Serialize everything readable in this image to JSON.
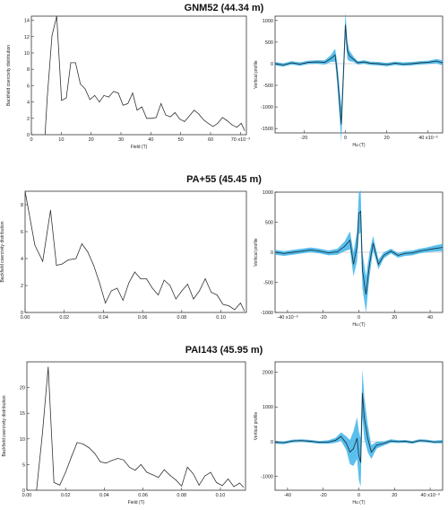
{
  "panels": [
    {
      "title": "GNM52 (44.34 m)"
    },
    {
      "title": "PA+55 (45.45 m)"
    },
    {
      "title": "PAI143 (45.95 m)"
    }
  ],
  "chart_data": [
    {
      "type": "line",
      "xlabel": "Field (T)",
      "ylabel": "Backfield coercivity distribution",
      "xlim": [
        0,
        0.072
      ],
      "ylim": [
        0,
        14.5
      ],
      "xticks": [
        0,
        0.01,
        0.02,
        0.03,
        0.04,
        0.05,
        0.06,
        0.07
      ],
      "xticklabels": [
        "0",
        "10",
        "20",
        "30",
        "40",
        "50",
        "60",
        "70 x10⁻³"
      ],
      "yticks": [
        0,
        2,
        4,
        6,
        8,
        10,
        12,
        14
      ],
      "yticklabels": [
        "0",
        "2",
        "4",
        "6",
        "8",
        "10",
        "12",
        "14"
      ],
      "x": [
        0.0046,
        0.0053,
        0.0069,
        0.0085,
        0.0101,
        0.0117,
        0.0132,
        0.0148,
        0.0164,
        0.018,
        0.0196,
        0.0212,
        0.0228,
        0.0243,
        0.0259,
        0.0275,
        0.0291,
        0.0307,
        0.0323,
        0.0339,
        0.0354,
        0.037,
        0.0386,
        0.0402,
        0.0418,
        0.0434,
        0.045,
        0.0466,
        0.0481,
        0.0497,
        0.0513,
        0.0529,
        0.0545,
        0.0561,
        0.0577,
        0.0592,
        0.0608,
        0.0624,
        0.064,
        0.0656,
        0.0672,
        0.0688,
        0.0703,
        0.0714
      ],
      "y": [
        0,
        4.5,
        12.1,
        14.5,
        4.2,
        4.5,
        8.8,
        8.8,
        6.2,
        5.6,
        4.3,
        4.8,
        4.0,
        4.8,
        4.6,
        5.3,
        5.1,
        3.6,
        3.8,
        5.1,
        3.0,
        3.4,
        2.0,
        2.0,
        2.1,
        3.8,
        2.4,
        2.2,
        2.7,
        1.9,
        1.6,
        2.3,
        3.0,
        2.5,
        1.8,
        1.4,
        1.0,
        1.4,
        2.1,
        1.7,
        1.2,
        0.9,
        1.4,
        0.5
      ]
    },
    {
      "type": "line",
      "xlabel": "Hu (T)",
      "ylabel": "Vertical profile",
      "xlim": [
        -0.034,
        0.047
      ],
      "ylim": [
        -1600,
        1100
      ],
      "xticks": [
        -0.02,
        0,
        0.02,
        0.04
      ],
      "xticklabels": [
        "-20",
        "0",
        "20",
        "40 x10⁻³"
      ],
      "yticks": [
        -1500,
        -1000,
        -500,
        0,
        500,
        1000
      ],
      "yticklabels": [
        "-1500",
        "-1000",
        "-500",
        "0",
        "500",
        "1000"
      ],
      "x": [
        -0.034,
        -0.03,
        -0.026,
        -0.022,
        -0.018,
        -0.014,
        -0.01,
        -0.007,
        -0.005,
        -0.004,
        -0.002,
        -0.001,
        0.0,
        0.001,
        0.002,
        0.004,
        0.006,
        0.009,
        0.012,
        0.016,
        0.02,
        0.024,
        0.028,
        0.032,
        0.036,
        0.04,
        0.044,
        0.047
      ],
      "y": [
        0,
        -30,
        20,
        -10,
        30,
        40,
        30,
        120,
        200,
        -200,
        -1400,
        -300,
        900,
        300,
        180,
        100,
        20,
        40,
        10,
        0,
        -20,
        10,
        -10,
        0,
        20,
        30,
        60,
        20
      ],
      "band_halfwidth": [
        40,
        40,
        40,
        40,
        40,
        40,
        50,
        80,
        150,
        250,
        400,
        300,
        300,
        200,
        120,
        60,
        40,
        40,
        40,
        40,
        40,
        40,
        40,
        40,
        40,
        40,
        50,
        60
      ]
    },
    {
      "type": "line",
      "xlabel": "",
      "ylabel": "Backfield coercivity distribution",
      "xlim": [
        0,
        0.113
      ],
      "ylim": [
        0,
        9
      ],
      "xticks": [
        0,
        0.02,
        0.04,
        0.06,
        0.08,
        0.1
      ],
      "xticklabels": [
        "0.00",
        "0.02",
        "0.04",
        "0.06",
        "0.08",
        "0.10"
      ],
      "yticks": [
        0,
        2,
        4,
        6,
        8
      ],
      "yticklabels": [
        "0",
        "2",
        "4",
        "6",
        "8"
      ],
      "x": [
        0.0,
        0.005,
        0.009,
        0.013,
        0.016,
        0.019,
        0.022,
        0.026,
        0.029,
        0.032,
        0.035,
        0.038,
        0.041,
        0.044,
        0.047,
        0.05,
        0.053,
        0.056,
        0.059,
        0.062,
        0.065,
        0.068,
        0.071,
        0.074,
        0.077,
        0.08,
        0.083,
        0.086,
        0.089,
        0.092,
        0.095,
        0.098,
        0.101,
        0.104,
        0.107,
        0.11,
        0.112
      ],
      "y": [
        9,
        5.0,
        3.8,
        7.6,
        3.5,
        3.6,
        3.9,
        4.0,
        5.1,
        4.5,
        3.5,
        2.2,
        0.7,
        1.6,
        1.8,
        0.9,
        2.2,
        3.0,
        2.5,
        2.5,
        1.8,
        1.3,
        2.4,
        2.0,
        1.0,
        1.6,
        2.1,
        1.0,
        1.6,
        2.5,
        1.5,
        1.3,
        0.6,
        0.5,
        0.2,
        0.7,
        0.1
      ]
    },
    {
      "type": "line",
      "xlabel": "Hu (T)",
      "ylabel": "Vertical profile",
      "xlim": [
        -0.047,
        0.047
      ],
      "ylim": [
        -1000,
        1000
      ],
      "xticks": [
        -0.04,
        -0.02,
        0,
        0.02,
        0.04
      ],
      "xticklabels": [
        "-40 x10⁻³",
        "-20",
        "0",
        "20",
        "40"
      ],
      "yticks": [
        -1000,
        -500,
        0,
        500,
        1000
      ],
      "yticklabels": [
        "-1000",
        "-500",
        "0",
        "500",
        "1000"
      ],
      "x": [
        -0.047,
        -0.042,
        -0.037,
        -0.032,
        -0.027,
        -0.022,
        -0.017,
        -0.012,
        -0.008,
        -0.005,
        -0.003,
        -0.001,
        0.0,
        0.001,
        0.002,
        0.004,
        0.006,
        0.008,
        0.011,
        0.014,
        0.018,
        0.022,
        0.026,
        0.03,
        0.034,
        0.038,
        0.042,
        0.047
      ],
      "y": [
        0,
        -20,
        0,
        20,
        40,
        20,
        -10,
        10,
        100,
        200,
        -200,
        100,
        650,
        680,
        -300,
        -700,
        -200,
        150,
        -200,
        -50,
        20,
        -50,
        -20,
        -10,
        20,
        40,
        60,
        80
      ],
      "band_halfwidth": [
        40,
        40,
        40,
        40,
        40,
        40,
        40,
        50,
        80,
        150,
        200,
        250,
        350,
        350,
        300,
        300,
        200,
        120,
        80,
        50,
        40,
        40,
        40,
        40,
        40,
        40,
        50,
        60
      ]
    },
    {
      "type": "line",
      "xlabel": "Field (T)",
      "ylabel": "Backfield coercivity distribution",
      "xlim": [
        0,
        0.113
      ],
      "ylim": [
        0,
        25
      ],
      "xticks": [
        0,
        0.02,
        0.04,
        0.06,
        0.08,
        0.1
      ],
      "xticklabels": [
        "0.00",
        "0.02",
        "0.04",
        "0.06",
        "0.08",
        "0.10"
      ],
      "yticks": [
        0,
        5,
        10,
        15,
        20
      ],
      "yticklabels": [
        "0",
        "5",
        "10",
        "15",
        "20"
      ],
      "x": [
        0.005,
        0.008,
        0.011,
        0.014,
        0.017,
        0.02,
        0.023,
        0.026,
        0.029,
        0.032,
        0.035,
        0.038,
        0.041,
        0.044,
        0.047,
        0.05,
        0.053,
        0.056,
        0.059,
        0.062,
        0.065,
        0.068,
        0.071,
        0.074,
        0.077,
        0.08,
        0.083,
        0.086,
        0.089,
        0.092,
        0.095,
        0.098,
        0.101,
        0.104,
        0.107,
        0.11,
        0.112
      ],
      "y": [
        0,
        11.0,
        24.0,
        1.5,
        1.0,
        3.5,
        6.5,
        9.3,
        9.0,
        8.3,
        7.2,
        5.5,
        5.3,
        5.8,
        6.2,
        5.9,
        4.5,
        3.9,
        5.0,
        3.5,
        3.0,
        2.5,
        4.0,
        2.9,
        2.0,
        0.8,
        4.5,
        3.2,
        1.0,
        2.8,
        3.5,
        1.5,
        0.9,
        2.2,
        0.7,
        1.4,
        0.6
      ]
    },
    {
      "type": "line",
      "xlabel": "Hu (T)",
      "ylabel": "Vertical profile",
      "xlim": [
        -0.047,
        0.047
      ],
      "ylim": [
        -1400,
        2300
      ],
      "xticks": [
        -0.04,
        -0.02,
        0,
        0.02,
        0.04
      ],
      "xticklabels": [
        "-40",
        "-20",
        "0",
        "20",
        "40 x10⁻³"
      ],
      "yticks": [
        -1000,
        0,
        1000,
        2000
      ],
      "yticklabels": [
        "-1000",
        "0",
        "1000",
        "2000"
      ],
      "x": [
        -0.047,
        -0.042,
        -0.037,
        -0.032,
        -0.027,
        -0.022,
        -0.017,
        -0.013,
        -0.01,
        -0.007,
        -0.005,
        -0.003,
        -0.001,
        0.0,
        0.001,
        0.002,
        0.003,
        0.005,
        0.007,
        0.01,
        0.014,
        0.018,
        0.022,
        0.026,
        0.03,
        0.034,
        0.038,
        0.042,
        0.047
      ],
      "y": [
        -20,
        -30,
        20,
        30,
        10,
        -20,
        -10,
        40,
        150,
        -50,
        -300,
        -200,
        100,
        -400,
        -600,
        1400,
        700,
        100,
        -300,
        -100,
        -50,
        20,
        0,
        10,
        -20,
        30,
        20,
        -10,
        0
      ],
      "band_halfwidth": [
        40,
        40,
        40,
        40,
        40,
        40,
        50,
        70,
        120,
        200,
        350,
        500,
        600,
        700,
        700,
        700,
        600,
        400,
        200,
        100,
        60,
        50,
        40,
        40,
        40,
        40,
        40,
        40,
        50
      ]
    }
  ]
}
